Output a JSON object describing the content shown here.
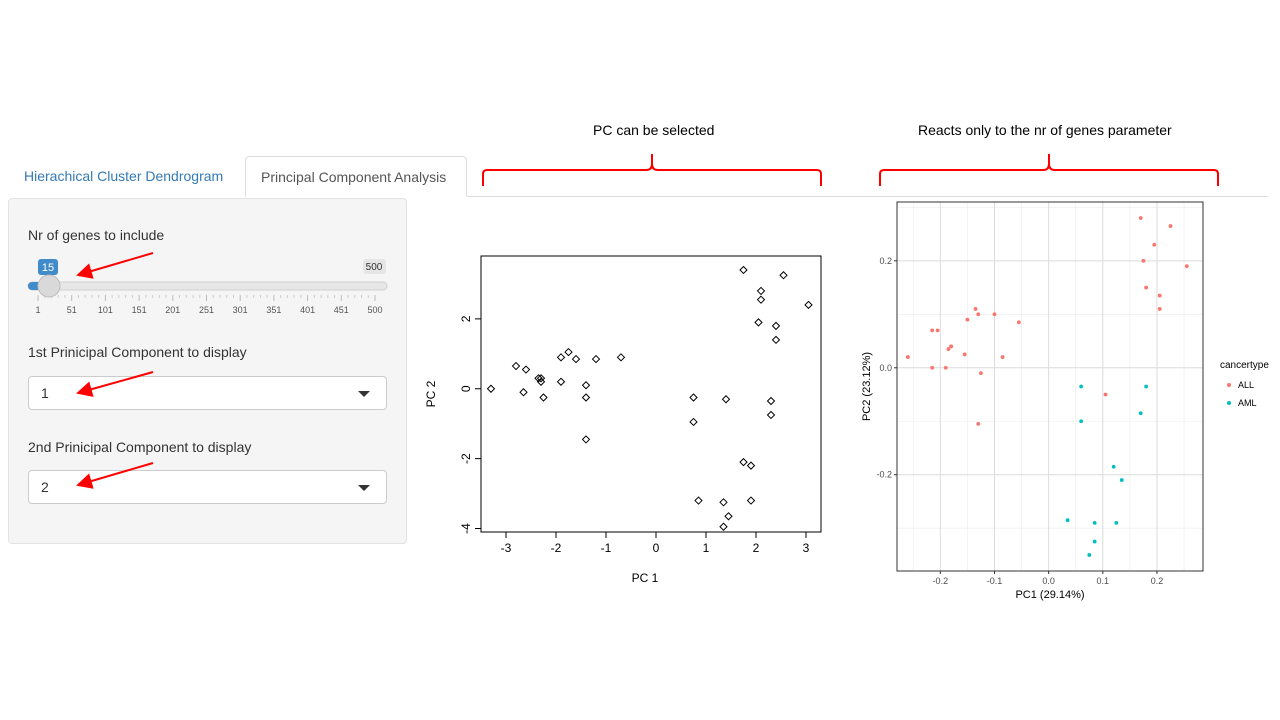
{
  "annotations": {
    "left": "PC can be selected",
    "right": "Reacts only to the nr of genes parameter",
    "bracket_color": "#ff0000",
    "arrow_color": "#ff0000"
  },
  "tabs": [
    {
      "label": "Hierachical Cluster Dendrogram",
      "active": false
    },
    {
      "label": "Principal Component Analysis",
      "active": true
    }
  ],
  "sidebar": {
    "genes_label": "Nr of genes to include",
    "slider": {
      "min": 1,
      "max": 500,
      "value": 15,
      "value_label": "15",
      "max_label": "500",
      "ticks": [
        "1",
        "51",
        "101",
        "151",
        "201",
        "251",
        "301",
        "351",
        "401",
        "451",
        "500"
      ]
    },
    "pc1_label": "1st Prinicipal Component to display",
    "pc1_value": "1",
    "pc2_label": "2nd Prinicipal Component to display",
    "pc2_value": "2"
  },
  "chart_data": [
    {
      "type": "scatter",
      "title": "",
      "xlabel": "PC 1",
      "ylabel": "PC 2",
      "xlim": [
        -3.5,
        3.3
      ],
      "ylim": [
        -4.1,
        3.8
      ],
      "xticks": [
        -3,
        -2,
        -1,
        0,
        1,
        2,
        3
      ],
      "yticks": [
        -4,
        -2,
        0,
        2
      ],
      "points": [
        [
          -3.3,
          0.0
        ],
        [
          -2.8,
          0.65
        ],
        [
          -2.6,
          0.55
        ],
        [
          -2.65,
          -0.1
        ],
        [
          -2.35,
          0.3
        ],
        [
          -2.3,
          0.2
        ],
        [
          -2.3,
          0.3
        ],
        [
          -2.25,
          -0.25
        ],
        [
          -1.9,
          0.9
        ],
        [
          -1.9,
          0.2
        ],
        [
          -1.75,
          1.05
        ],
        [
          -1.6,
          0.85
        ],
        [
          -1.4,
          0.1
        ],
        [
          -1.4,
          -0.25
        ],
        [
          -1.4,
          -1.45
        ],
        [
          -1.2,
          0.85
        ],
        [
          -0.7,
          0.9
        ],
        [
          0.75,
          -0.25
        ],
        [
          0.75,
          -0.95
        ],
        [
          0.85,
          -3.2
        ],
        [
          1.35,
          -3.25
        ],
        [
          1.35,
          -3.95
        ],
        [
          1.45,
          -3.65
        ],
        [
          1.4,
          -0.3
        ],
        [
          1.75,
          3.4
        ],
        [
          1.75,
          -2.1
        ],
        [
          1.9,
          -3.2
        ],
        [
          1.9,
          -2.2
        ],
        [
          2.05,
          1.9
        ],
        [
          2.1,
          2.55
        ],
        [
          2.1,
          2.8
        ],
        [
          2.3,
          -0.35
        ],
        [
          2.3,
          -0.75
        ],
        [
          2.4,
          1.8
        ],
        [
          2.4,
          1.4
        ],
        [
          2.55,
          3.25
        ],
        [
          3.05,
          2.4
        ]
      ]
    },
    {
      "type": "scatter",
      "title": "",
      "xlabel": "PC1 (29.14%)",
      "ylabel": "PC2 (23.12%)",
      "xlim": [
        -0.28,
        0.285
      ],
      "ylim": [
        -0.38,
        0.31
      ],
      "xticks": [
        "-0.2",
        "-0.1",
        "0.0",
        "0.1",
        "0.2"
      ],
      "yticks": [
        "-0.2",
        "0.0",
        "0.2"
      ],
      "legend": {
        "title": "cancertype",
        "position": "right"
      },
      "series": [
        {
          "name": "ALL",
          "color": "#f8766d",
          "points": [
            [
              -0.26,
              0.02
            ],
            [
              -0.215,
              0.0
            ],
            [
              -0.215,
              0.07
            ],
            [
              -0.205,
              0.07
            ],
            [
              -0.19,
              0.0
            ],
            [
              -0.185,
              0.035
            ],
            [
              -0.18,
              0.04
            ],
            [
              -0.18,
              0.04
            ],
            [
              -0.155,
              0.025
            ],
            [
              -0.15,
              0.09
            ],
            [
              -0.135,
              0.11
            ],
            [
              -0.13,
              0.1
            ],
            [
              -0.125,
              -0.01
            ],
            [
              -0.13,
              -0.105
            ],
            [
              -0.1,
              0.1
            ],
            [
              -0.085,
              0.02
            ],
            [
              -0.055,
              0.085
            ],
            [
              0.105,
              -0.05
            ],
            [
              0.17,
              0.28
            ],
            [
              0.175,
              0.2
            ],
            [
              0.18,
              0.15
            ],
            [
              0.195,
              0.23
            ],
            [
              0.205,
              0.135
            ],
            [
              0.205,
              0.11
            ],
            [
              0.225,
              0.265
            ],
            [
              0.255,
              0.19
            ]
          ]
        },
        {
          "name": "AML",
          "color": "#00bfc4",
          "points": [
            [
              0.035,
              -0.285
            ],
            [
              0.06,
              -0.035
            ],
            [
              0.06,
              -0.1
            ],
            [
              0.075,
              -0.35
            ],
            [
              0.085,
              -0.29
            ],
            [
              0.085,
              -0.325
            ],
            [
              0.12,
              -0.185
            ],
            [
              0.125,
              -0.29
            ],
            [
              0.135,
              -0.21
            ],
            [
              0.17,
              -0.085
            ],
            [
              0.18,
              -0.035
            ]
          ]
        }
      ]
    }
  ]
}
